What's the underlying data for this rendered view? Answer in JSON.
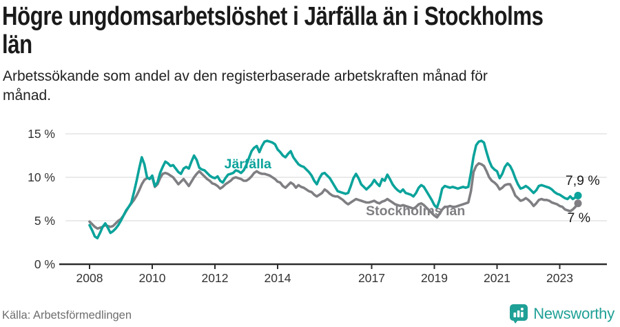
{
  "title": "Högre ungdomsarbetslöshet i Järfälla än i Stockholms\nlän",
  "subtitle": "Arbetssökande som andel av den registerbaserade arbetskraften månad för\nmånad.",
  "source": "Källa: Arbetsförmedlingen",
  "logo": {
    "text": "Newsworthy",
    "icon": "bar-chart-speech-bubble-icon"
  },
  "colors": {
    "teal": "#0ba39b",
    "gray": "#7f7f83",
    "dark": "#1a1a1a",
    "grid": "#e3e3e3",
    "axis": "#2c2c2c",
    "tick_text": "#333333",
    "logo_teal": "#1fa096"
  },
  "chart_data": {
    "type": "line",
    "title": "Högre ungdomsarbetslöshet i Järfälla än i Stockholms län",
    "ylabel": "",
    "xlabel": "",
    "x_start": "2008-01",
    "x_end": "2023-08",
    "frequency": "monthly",
    "ylim": [
      0,
      16.5
    ],
    "xlim": [
      2008,
      2024.4
    ],
    "grid": "horizontal",
    "legend_position": "inline-labels",
    "x_axis": {
      "ticks": [
        2008,
        2010,
        2012,
        2014,
        2017,
        2019,
        2021,
        2023
      ],
      "labels": [
        "2008",
        "2010",
        "2012",
        "2014",
        "2017",
        "2019",
        "2021",
        "2023"
      ]
    },
    "y_axis": {
      "ticks": [
        0,
        5,
        10,
        15
      ],
      "labels": [
        "0 %",
        "5 %",
        "10 %",
        "15 %"
      ]
    },
    "series": [
      {
        "name": "Stockholms län",
        "color_key": "gray",
        "end_value": 7.0,
        "end_label": "7 %",
        "values": [
          4.9,
          4.6,
          4.3,
          4.1,
          4.2,
          4.3,
          4.5,
          4.4,
          4.3,
          4.4,
          4.7,
          5.0,
          5.2,
          5.6,
          6.1,
          6.6,
          7.0,
          7.4,
          7.9,
          8.5,
          9.2,
          9.7,
          9.9,
          9.9,
          10.0,
          8.9,
          9.2,
          9.9,
          10.4,
          10.5,
          10.4,
          10.2,
          10.0,
          9.6,
          9.2,
          9.5,
          9.8,
          9.4,
          9.0,
          9.5,
          10.0,
          10.4,
          10.7,
          10.4,
          10.1,
          9.8,
          9.6,
          9.3,
          9.2,
          9.0,
          8.7,
          8.9,
          9.2,
          9.4,
          9.6,
          9.9,
          10.0,
          9.9,
          9.8,
          9.6,
          9.6,
          9.8,
          10.1,
          10.5,
          10.7,
          10.5,
          10.4,
          10.4,
          10.3,
          10.2,
          10.0,
          9.8,
          9.5,
          9.4,
          9.0,
          8.8,
          9.1,
          9.4,
          9.2,
          8.8,
          9.1,
          8.9,
          8.8,
          8.6,
          8.4,
          8.3,
          8.0,
          7.8,
          8.0,
          8.2,
          8.6,
          8.4,
          8.1,
          7.9,
          7.8,
          7.8,
          7.6,
          7.4,
          7.1,
          6.9,
          7.1,
          7.3,
          7.5,
          7.4,
          7.3,
          7.2,
          7.1,
          7.1,
          7.2,
          7.3,
          7.1,
          7.0,
          7.2,
          7.3,
          7.5,
          7.3,
          7.1,
          6.9,
          6.8,
          6.7,
          6.8,
          6.7,
          6.6,
          6.5,
          6.4,
          6.6,
          6.9,
          7.0,
          6.8,
          6.5,
          6.2,
          5.9,
          5.6,
          5.4,
          5.8,
          6.3,
          6.6,
          6.6,
          6.7,
          6.6,
          6.6,
          6.7,
          6.8,
          6.9,
          7.0,
          7.1,
          8.4,
          10.6,
          11.3,
          11.6,
          11.5,
          11.3,
          10.7,
          10.0,
          9.6,
          9.4,
          9.1,
          8.6,
          8.8,
          9.1,
          9.2,
          9.2,
          8.6,
          7.9,
          7.6,
          7.3,
          7.4,
          7.6,
          7.4,
          7.1,
          6.7,
          7.0,
          7.4,
          7.5,
          7.4,
          7.4,
          7.3,
          7.1,
          7.0,
          6.9,
          6.7,
          6.6,
          6.3,
          6.2,
          6.1,
          6.3,
          6.6,
          7.0
        ]
      },
      {
        "name": "Järfälla",
        "color_key": "teal",
        "end_value": 7.9,
        "end_label": "7,9 %",
        "values": [
          4.5,
          3.9,
          3.2,
          3.0,
          3.6,
          4.3,
          4.7,
          4.2,
          3.6,
          3.8,
          4.1,
          4.5,
          5.0,
          5.6,
          6.2,
          6.6,
          7.1,
          8.3,
          9.6,
          11.0,
          12.3,
          11.5,
          10.0,
          9.8,
          10.2,
          9.0,
          9.4,
          10.5,
          11.2,
          11.8,
          11.6,
          11.3,
          11.4,
          11.0,
          10.6,
          10.4,
          11.0,
          11.2,
          11.0,
          11.8,
          12.5,
          12.0,
          11.1,
          10.9,
          10.8,
          10.5,
          10.2,
          10.0,
          9.9,
          10.1,
          9.6,
          9.4,
          9.9,
          10.3,
          10.4,
          10.5,
          10.8,
          10.7,
          10.5,
          10.8,
          11.4,
          12.2,
          13.0,
          13.4,
          13.6,
          12.9,
          13.6,
          14.1,
          14.2,
          14.1,
          14.0,
          13.8,
          13.2,
          12.9,
          12.5,
          12.3,
          12.7,
          13.0,
          12.3,
          11.9,
          11.5,
          11.3,
          11.2,
          10.9,
          10.6,
          10.2,
          9.6,
          9.2,
          9.9,
          10.4,
          10.5,
          10.2,
          9.9,
          9.4,
          8.9,
          8.4,
          8.3,
          8.2,
          8.1,
          8.2,
          9.0,
          9.9,
          10.4,
          9.9,
          9.2,
          8.9,
          8.6,
          8.9,
          9.2,
          9.7,
          9.3,
          9.0,
          9.8,
          9.6,
          10.3,
          9.8,
          9.2,
          8.8,
          8.5,
          8.3,
          8.6,
          8.2,
          8.1,
          8.0,
          7.8,
          8.2,
          8.8,
          9.1,
          8.9,
          8.4,
          7.9,
          7.4,
          6.8,
          6.5,
          7.4,
          8.7,
          9.0,
          8.9,
          8.8,
          8.9,
          8.8,
          8.7,
          8.8,
          8.9,
          8.8,
          8.9,
          10.5,
          12.4,
          13.7,
          14.1,
          14.2,
          14.0,
          12.9,
          11.9,
          11.2,
          10.9,
          10.7,
          9.9,
          10.4,
          11.2,
          11.6,
          11.3,
          10.7,
          9.9,
          9.2,
          8.7,
          8.8,
          9.0,
          8.8,
          8.5,
          8.2,
          8.5,
          9.0,
          9.1,
          9.0,
          8.9,
          8.8,
          8.6,
          8.3,
          8.1,
          8.0,
          7.8,
          7.6,
          7.5,
          7.8,
          7.5,
          7.7,
          7.9
        ]
      }
    ],
    "annotations": [
      {
        "text": "Järfälla",
        "x": 2013.05,
        "y": 11.5,
        "color_key": "teal",
        "bold": true,
        "anchor": "middle"
      },
      {
        "text": "Stockholms län",
        "x": 2018.4,
        "y": 6.1,
        "color_key": "gray",
        "bold": true,
        "anchor": "middle"
      },
      {
        "text": "7,9 %",
        "x": 2024.28,
        "y": 9.6,
        "color_key": "dark",
        "bold": false,
        "anchor": "end"
      },
      {
        "text": "7 %",
        "x": 2023.98,
        "y": 5.3,
        "color_key": "dark",
        "bold": false,
        "anchor": "end"
      }
    ]
  }
}
